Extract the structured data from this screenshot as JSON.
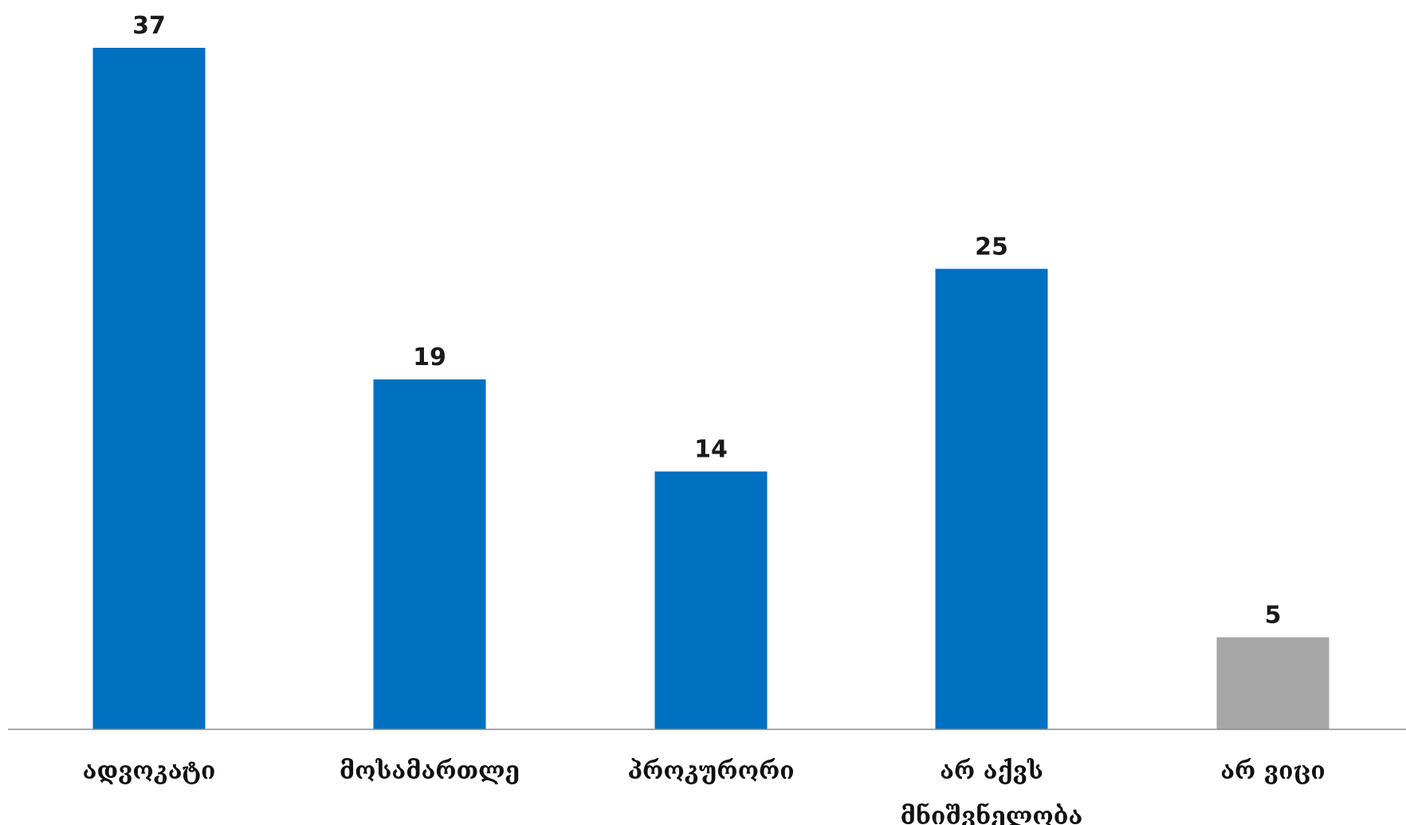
{
  "chart_data": {
    "type": "bar",
    "categories": [
      [
        "ადვოკატი"
      ],
      [
        "მოსამართლე"
      ],
      [
        "პროკურორი"
      ],
      [
        "არ აქვს",
        "მნიშვნელობა"
      ],
      [
        "არ ვიცი"
      ]
    ],
    "values": [
      37,
      19,
      14,
      25,
      5
    ],
    "bar_colors": [
      "#0070C0",
      "#0070C0",
      "#0070C0",
      "#0070C0",
      "#A6A6A6"
    ],
    "axis_color": "#8C8C8C",
    "ylim": [
      0,
      37
    ],
    "grid": false,
    "legend": "none"
  }
}
